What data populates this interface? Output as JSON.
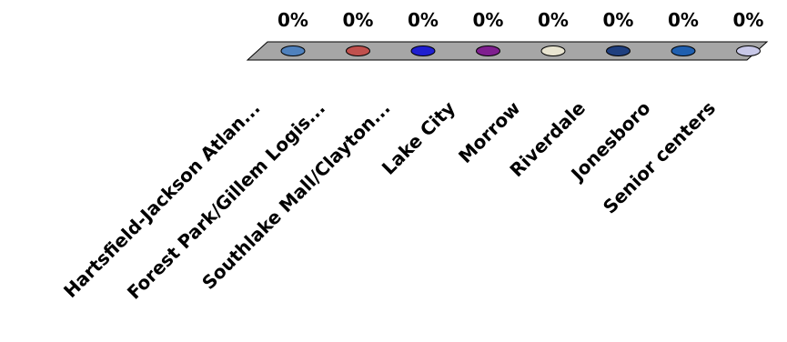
{
  "chart_data": {
    "type": "bar",
    "categories": [
      "Hartsfield-Jackson Atlan...",
      "Forest Park/Gillem Logis...",
      "Southlake Mall/Clayton...",
      "Lake City",
      "Morrow",
      "Riverdale",
      "Jonesboro",
      "Senior centers"
    ],
    "values": [
      0,
      0,
      0,
      0,
      0,
      0,
      0,
      0
    ],
    "data_labels": [
      "0%",
      "0%",
      "0%",
      "0%",
      "0%",
      "0%",
      "0%",
      "0%"
    ],
    "colors": [
      "#4f81bd",
      "#c0504d",
      "#1f1fd0",
      "#7f1f8f",
      "#e8e4d0",
      "#1f3f7f",
      "#1f5faf",
      "#c8c8e8"
    ],
    "floor_color": "#a6a6a6",
    "ylim": [
      0,
      1
    ],
    "grid": false,
    "legend": "none"
  }
}
